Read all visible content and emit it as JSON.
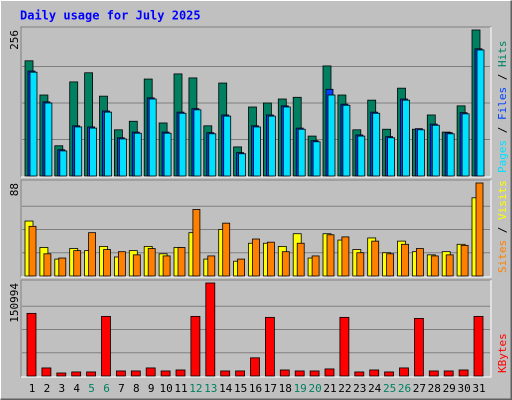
{
  "chart_data": [
    {
      "type": "bar",
      "title": "Daily usage for July 2025",
      "ylim": [
        0,
        256
      ],
      "yticks": [
        256
      ],
      "grid": true,
      "legend_separator": " / ",
      "series": [
        {
          "name": "Hits",
          "color": "#008060",
          "values": [
            202,
            142,
            53,
            165,
            181,
            140,
            81,
            96,
            170,
            93,
            179,
            172,
            88,
            163,
            51,
            121,
            128,
            135,
            138,
            70,
            193,
            142,
            81,
            133,
            82,
            154,
            82,
            107,
            77,
            123,
            256
          ]
        },
        {
          "name": "Files",
          "color": "#0040ff",
          "values": [
            184,
            130,
            46,
            88,
            86,
            114,
            67,
            77,
            137,
            77,
            112,
            118,
            76,
            107,
            41,
            88,
            107,
            123,
            84,
            62,
            152,
            126,
            72,
            112,
            69,
            135,
            83,
            91,
            76,
            111,
            223
          ]
        },
        {
          "name": "Pages",
          "color": "#00e0ff",
          "values": [
            182,
            128,
            44,
            86,
            84,
            112,
            65,
            75,
            135,
            75,
            110,
            116,
            74,
            105,
            39,
            86,
            105,
            121,
            82,
            60,
            142,
            124,
            70,
            110,
            67,
            133,
            81,
            89,
            74,
            109,
            221
          ]
        }
      ]
    },
    {
      "type": "bar",
      "ylim": [
        0,
        88
      ],
      "yticks": [
        88
      ],
      "grid": true,
      "legend_separator": " / ",
      "series": [
        {
          "name": "Visits",
          "color": "#ffff00",
          "values": [
            52,
            27,
            16,
            26,
            24,
            28,
            18,
            24,
            28,
            21,
            27,
            41,
            16,
            44,
            14,
            31,
            31,
            28,
            40,
            17,
            40,
            34,
            25,
            36,
            22,
            33,
            23,
            20,
            23,
            30,
            74
          ]
        },
        {
          "name": "Sites",
          "color": "#ff8000",
          "values": [
            47,
            21,
            17,
            24,
            41,
            25,
            23,
            20,
            26,
            19,
            27,
            63,
            19,
            50,
            16,
            35,
            32,
            23,
            31,
            19,
            39,
            37,
            22,
            33,
            21,
            30,
            26,
            19,
            20,
            29,
            88
          ]
        }
      ]
    },
    {
      "type": "bar",
      "ylim": [
        0,
        150994
      ],
      "yticks": [
        150994
      ],
      "grid": true,
      "categories": [
        "1",
        "2",
        "3",
        "4",
        "5",
        "6",
        "7",
        "8",
        "9",
        "10",
        "11",
        "12",
        "13",
        "14",
        "15",
        "16",
        "17",
        "18",
        "19",
        "20",
        "21",
        "22",
        "23",
        "24",
        "25",
        "26",
        "27",
        "28",
        "29",
        "30",
        "31"
      ],
      "category_colors": [
        "#000",
        "#000",
        "#000",
        "#000",
        "#008060",
        "#008060",
        "#000",
        "#000",
        "#000",
        "#000",
        "#000",
        "#008060",
        "#008060",
        "#000",
        "#000",
        "#000",
        "#000",
        "#000",
        "#008060",
        "#008060",
        "#000",
        "#000",
        "#000",
        "#000",
        "#008060",
        "#008060",
        "#000",
        "#000",
        "#000",
        "#000",
        "#000"
      ],
      "series": [
        {
          "name": "KBytes",
          "color": "#ff0000",
          "values": [
            101700,
            13100,
            4900,
            6600,
            6600,
            96800,
            8200,
            8200,
            13100,
            8200,
            9800,
            96800,
            150994,
            8200,
            8200,
            29500,
            95200,
            9800,
            8200,
            8200,
            11500,
            95200,
            6600,
            9800,
            6600,
            13100,
            93500,
            8200,
            8200,
            9800,
            96800
          ]
        }
      ]
    }
  ]
}
